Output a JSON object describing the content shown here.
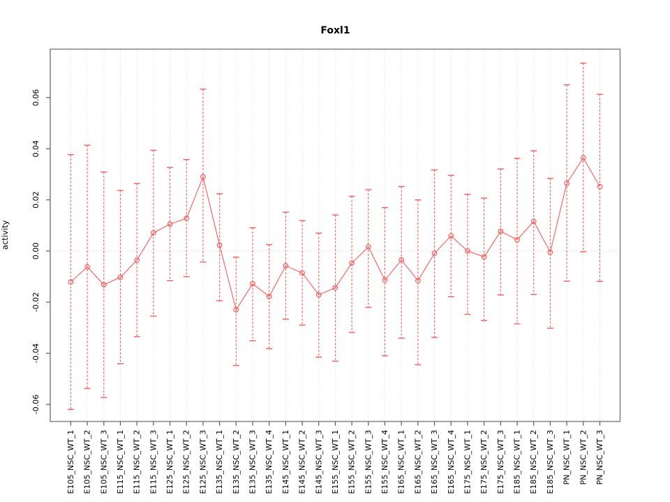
{
  "figure": {
    "background": "#ffffff",
    "title": "Foxl1"
  },
  "chart_data": {
    "type": "line",
    "title": "Foxl1",
    "xlabel": "",
    "ylabel": "activity",
    "legend": "none",
    "grid": "vertical dotted gridline at every category; horizontal dotted line at y=0",
    "marker": "open-circle",
    "error_bars": true,
    "ylim": [
      -0.0667,
      0.079
    ],
    "yticks": [
      -0.06,
      -0.04,
      -0.02,
      0.0,
      0.02,
      0.04,
      0.06
    ],
    "ytick_labels": [
      "-0.06",
      "-0.04",
      "-0.02",
      "0.00",
      "0.02",
      "0.04",
      "0.06"
    ],
    "categories": [
      "E105_NSC_WT_1",
      "E105_NSC_WT_2",
      "E105_NSC_WT_3",
      "E115_NSC_WT_1",
      "E115_NSC_WT_2",
      "E115_NSC_WT_3",
      "E125_NSC_WT_1",
      "E125_NSC_WT_2",
      "E125_NSC_WT_3",
      "E135_NSC_WT_1",
      "E135_NSC_WT_2",
      "E135_NSC_WT_3",
      "E135_NSC_WT_4",
      "E145_NSC_WT_1",
      "E145_NSC_WT_2",
      "E145_NSC_WT_3",
      "E155_NSC_WT_1",
      "E155_NSC_WT_2",
      "E155_NSC_WT_3",
      "E155_NSC_WT_4",
      "E165_NSC_WT_1",
      "E165_NSC_WT_2",
      "E165_NSC_WT_3",
      "E165_NSC_WT_4",
      "E175_NSC_WT_1",
      "E175_NSC_WT_2",
      "E175_NSC_WT_3",
      "E185_NSC_WT_1",
      "E185_NSC_WT_2",
      "E185_NSC_WT_3",
      "PN_NSC_WT_1",
      "PN_NSC_WT_2",
      "PN_NSC_WT_3"
    ],
    "series": [
      {
        "name": "activity",
        "values": [
          -0.0121,
          -0.0062,
          -0.0132,
          -0.0103,
          -0.0036,
          0.0071,
          0.0105,
          0.0128,
          0.029,
          0.0023,
          -0.023,
          -0.0128,
          -0.0178,
          -0.0058,
          -0.0086,
          -0.0171,
          -0.0144,
          -0.0047,
          0.0016,
          -0.0114,
          -0.0035,
          -0.0116,
          -0.0009,
          0.0059,
          0.0,
          -0.0023,
          0.0077,
          0.0044,
          0.0116,
          -0.0005,
          0.0265,
          0.0364,
          0.0252
        ],
        "upper": [
          0.0377,
          0.0414,
          0.0309,
          0.0237,
          0.0264,
          0.0394,
          0.0327,
          0.0358,
          0.0633,
          0.0224,
          -0.0024,
          0.0091,
          0.0025,
          0.0152,
          0.0119,
          0.007,
          0.0141,
          0.0214,
          0.024,
          0.017,
          0.0252,
          0.02,
          0.0317,
          0.0296,
          0.0222,
          0.0207,
          0.0321,
          0.0362,
          0.0392,
          0.0284,
          0.065,
          0.0735,
          0.0613
        ],
        "lower": [
          -0.062,
          -0.0538,
          -0.0573,
          -0.0441,
          -0.0335,
          -0.0255,
          -0.0116,
          -0.01,
          -0.0043,
          -0.0195,
          -0.0448,
          -0.0351,
          -0.0382,
          -0.0267,
          -0.029,
          -0.0415,
          -0.0431,
          -0.0318,
          -0.022,
          -0.041,
          -0.0341,
          -0.0445,
          -0.0338,
          -0.0179,
          -0.0248,
          -0.0272,
          -0.0172,
          -0.0285,
          -0.017,
          -0.0302,
          -0.0118,
          -0.0003,
          -0.0119
        ]
      }
    ],
    "colors": {
      "series": "#ff5a5a",
      "gridline": "#dedede",
      "zero_line": "#d4d4d4",
      "box_border": "#898989",
      "tick_mark": "#5a5a5a",
      "text": "#000000"
    }
  }
}
